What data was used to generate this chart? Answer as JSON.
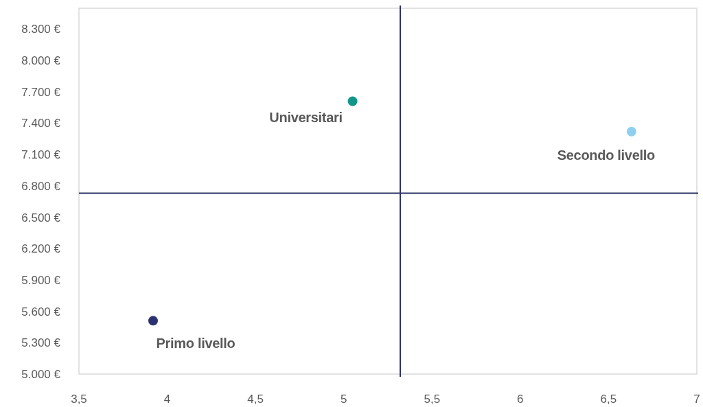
{
  "chart_data": {
    "type": "scatter",
    "xlim": [
      3.5,
      7
    ],
    "ylim": [
      5000,
      8500
    ],
    "xticks": [
      {
        "value": 3.5,
        "label": "3,5"
      },
      4,
      {
        "value": 4.5,
        "label": "4,5"
      },
      5,
      {
        "value": 5.5,
        "label": "5,5"
      },
      6,
      {
        "value": 6.5,
        "label": "6,5"
      },
      7
    ],
    "yticks": [
      {
        "value": 5000,
        "label": "5.000 €"
      },
      {
        "value": 5300,
        "label": "5.300 €"
      },
      {
        "value": 5600,
        "label": "5.600 €"
      },
      {
        "value": 5900,
        "label": "5.900 €"
      },
      {
        "value": 6200,
        "label": "6.200 €"
      },
      {
        "value": 6500,
        "label": "6.500 €"
      },
      {
        "value": 6800,
        "label": "6.800 €"
      },
      {
        "value": 7100,
        "label": "7.100 €"
      },
      {
        "value": 7400,
        "label": "7.400 €"
      },
      {
        "value": 7700,
        "label": "7.700 €"
      },
      {
        "value": 8000,
        "label": "8.000 €"
      },
      {
        "value": 8300,
        "label": "8.300 €"
      }
    ],
    "series": [
      {
        "name": "Primo livello",
        "color": "#2b3270",
        "x": [
          3.92
        ],
        "values": [
          5510
        ]
      },
      {
        "name": "Universitari",
        "color": "#13968a",
        "x": [
          5.05
        ],
        "values": [
          7610
        ]
      },
      {
        "name": "Secondo livello",
        "color": "#8fd0f0",
        "x": [
          6.63
        ],
        "values": [
          7320
        ]
      }
    ],
    "ref_lines": [
      {
        "axis": "x",
        "value": 5.32,
        "color": "#2b3467"
      },
      {
        "axis": "y",
        "value": 6730,
        "color": "#2b3467"
      }
    ],
    "marker": "circle",
    "grid": false
  }
}
